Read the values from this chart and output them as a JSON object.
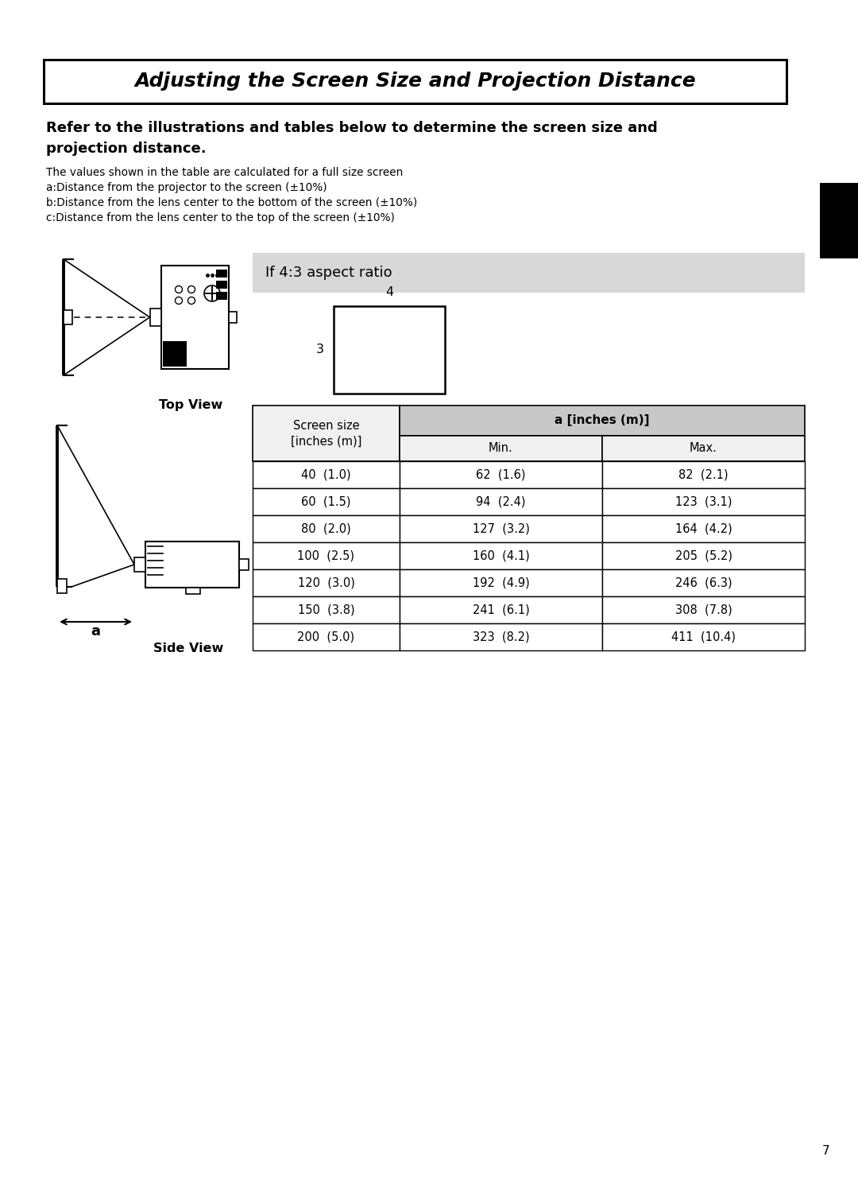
{
  "title": "Adjusting the Screen Size and Projection Distance",
  "intro_line1": "Refer to the illustrations and tables below to determine the screen size and",
  "intro_line2": "projection distance.",
  "notes": [
    "The values shown in the table are calculated for a full size screen",
    "a:Distance from the projector to the screen (±10%)",
    "b:Distance from the lens center to the bottom of the screen (±10%)",
    "c:Distance from the lens center to the top of the screen (±10%)"
  ],
  "aspect_ratio_label": "If 4:3 aspect ratio",
  "top_view_label": "Top View",
  "side_view_label": "Side View",
  "dimension_a_label": "a",
  "table_header_col1_line1": "Screen size",
  "table_header_col1_line2": "[inches (m)]",
  "table_header_col2": "a [inches (m)]",
  "table_subheader_min": "Min.",
  "table_subheader_max": "Max.",
  "table_data": [
    [
      "40  (1.0)",
      "62  (1.6)",
      "82  (2.1)"
    ],
    [
      "60  (1.5)",
      "94  (2.4)",
      "123  (3.1)"
    ],
    [
      "80  (2.0)",
      "127  (3.2)",
      "164  (4.2)"
    ],
    [
      "100  (2.5)",
      "160  (4.1)",
      "205  (5.2)"
    ],
    [
      "120  (3.0)",
      "192  (4.9)",
      "246  (6.3)"
    ],
    [
      "150  (3.8)",
      "241  (6.1)",
      "308  (7.8)"
    ],
    [
      "200  (5.0)",
      "323  (8.2)",
      "411  (10.4)"
    ]
  ],
  "page_number": "7",
  "bg_color": "#ffffff",
  "black_tab_color": "#000000",
  "aspect_bg": "#d8d8d8",
  "table_hdr2_bg": "#c8c8c8",
  "table_hdr1_bg": "#f0f0f0"
}
